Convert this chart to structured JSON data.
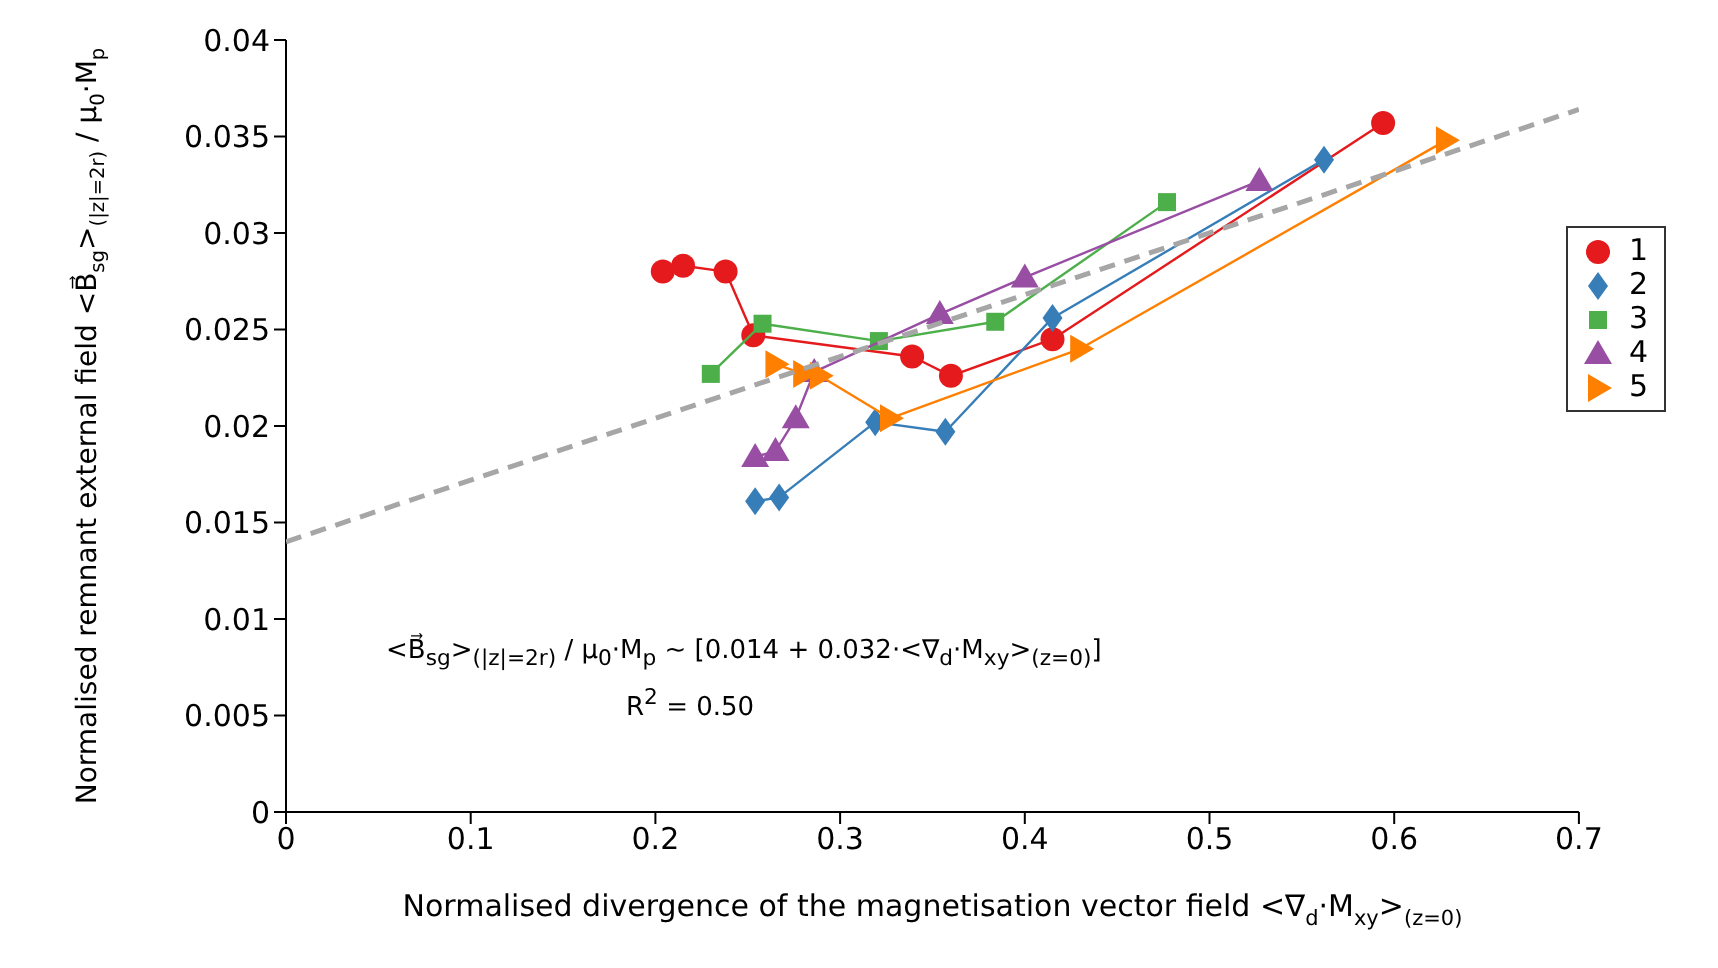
{
  "chart_data": {
    "type": "line",
    "xlabel": "Normalised divergence of the magnetisation vector field <∇$_{d}$·M$_{xy}$>$_{(z=0)}$",
    "ylabel": "Normalised remnant external field <B⃗$_{sg}$>$_{(|z|=2r)}$ / μ$_{0}$·M$_{p}$",
    "annotations": [
      "<B⃗$_{sg}$>$_{(|z|=2r)}$ / μ$_{0}$·M$_{p}$ ~ [0.014 + 0.032·<∇$_{d}$·M$_{xy}$>$_{(z=0)}$]",
      "R$^{2}$ = 0.50"
    ],
    "xlim": [
      0,
      0.7
    ],
    "xticks": [
      0,
      0.1,
      0.2,
      0.3,
      0.4,
      0.5,
      0.6,
      0.7
    ],
    "ylim": [
      0,
      0.04
    ],
    "yticks": [
      0,
      0.005,
      0.01,
      0.015,
      0.02,
      0.025,
      0.03,
      0.035,
      0.04
    ],
    "grid": false,
    "legend": "right",
    "series": [
      {
        "name": "1",
        "color": "#e41a1c",
        "marker": "circle",
        "line_style": "solid",
        "x": [
          0.204,
          0.215,
          0.238,
          0.253,
          0.339,
          0.36,
          0.415,
          0.594
        ],
        "values": [
          0.028,
          0.0283,
          0.028,
          0.0247,
          0.0236,
          0.0226,
          0.0245,
          0.0357
        ]
      },
      {
        "name": "2",
        "color": "#377eb8",
        "marker": "diamond",
        "line_style": "solid",
        "x": [
          0.254,
          0.267,
          0.319,
          0.357,
          0.415,
          0.562
        ],
        "values": [
          0.0161,
          0.0163,
          0.0202,
          0.0197,
          0.0256,
          0.0338
        ]
      },
      {
        "name": "3",
        "color": "#4daf4a",
        "marker": "square",
        "line_style": "solid",
        "x": [
          0.23,
          0.258,
          0.321,
          0.384,
          0.477
        ],
        "values": [
          0.0227,
          0.0253,
          0.0244,
          0.0254,
          0.0316
        ]
      },
      {
        "name": "4",
        "color": "#984ea3",
        "marker": "triangle",
        "line_style": "solid",
        "x": [
          0.254,
          0.265,
          0.276,
          0.286,
          0.354,
          0.4,
          0.527
        ],
        "values": [
          0.0184,
          0.0187,
          0.0204,
          0.0228,
          0.0258,
          0.0277,
          0.0327
        ]
      },
      {
        "name": "5",
        "color": "#ff7f00",
        "marker": "triangle-right",
        "line_style": "solid",
        "x": [
          0.265,
          0.28,
          0.289,
          0.327,
          0.43,
          0.628
        ],
        "values": [
          0.0232,
          0.0227,
          0.0226,
          0.0204,
          0.024,
          0.0348
        ]
      },
      {
        "type": "line",
        "color": "#a6a6a6",
        "marker": "none",
        "line_style": "dashed",
        "x": [
          0,
          0.7
        ],
        "values": [
          0.014,
          0.0364
        ]
      }
    ]
  }
}
